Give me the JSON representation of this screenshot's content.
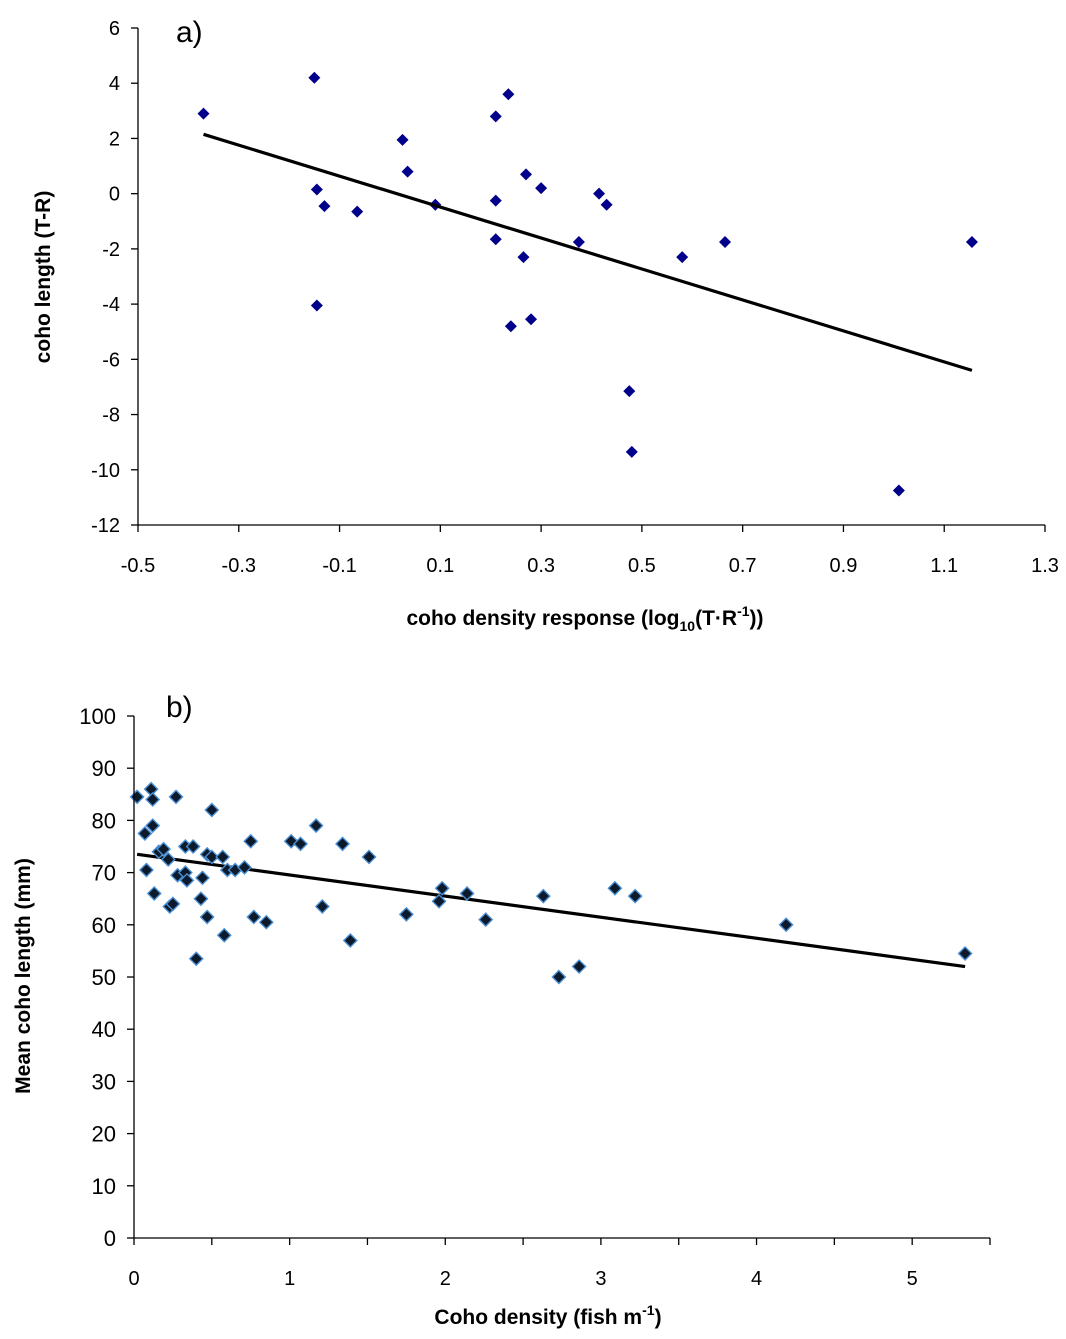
{
  "chart_data": [
    {
      "type": "scatter",
      "panel_label": "a)",
      "xlabel_main": "coho density response (log",
      "xlabel_sub": "10",
      "xlabel_mid": "(T·R",
      "xlabel_sup": "-1",
      "xlabel_end": "))",
      "ylabel": "coho length (T-R)",
      "xlim": [
        -0.5,
        1.3
      ],
      "ylim": [
        -12,
        6
      ],
      "xticks": [
        "-0.5",
        "-0.3",
        "-0.1",
        "0.1",
        "0.3",
        "0.5",
        "0.7",
        "0.9",
        "1.1",
        "1.3"
      ],
      "yticks": [
        "-12",
        "-10",
        "-8",
        "-6",
        "-4",
        "-2",
        "0",
        "2",
        "4",
        "6"
      ],
      "marker_color": "#00008B",
      "points": [
        {
          "x": -0.37,
          "y": 2.9
        },
        {
          "x": -0.15,
          "y": 4.2
        },
        {
          "x": -0.145,
          "y": 0.15
        },
        {
          "x": -0.145,
          "y": -4.05
        },
        {
          "x": -0.13,
          "y": -0.45
        },
        {
          "x": -0.065,
          "y": -0.65
        },
        {
          "x": 0.025,
          "y": 1.95
        },
        {
          "x": 0.035,
          "y": 0.8
        },
        {
          "x": 0.09,
          "y": -0.4
        },
        {
          "x": 0.21,
          "y": 2.8
        },
        {
          "x": 0.21,
          "y": -0.25
        },
        {
          "x": 0.21,
          "y": -1.65
        },
        {
          "x": 0.235,
          "y": 3.6
        },
        {
          "x": 0.24,
          "y": -4.8
        },
        {
          "x": 0.265,
          "y": -2.3
        },
        {
          "x": 0.27,
          "y": 0.7
        },
        {
          "x": 0.28,
          "y": -4.55
        },
        {
          "x": 0.3,
          "y": 0.2
        },
        {
          "x": 0.375,
          "y": -1.75
        },
        {
          "x": 0.415,
          "y": 0.0
        },
        {
          "x": 0.43,
          "y": -0.4
        },
        {
          "x": 0.475,
          "y": -7.15
        },
        {
          "x": 0.48,
          "y": -9.35
        },
        {
          "x": 0.58,
          "y": -2.3
        },
        {
          "x": 0.665,
          "y": -1.75
        },
        {
          "x": 1.01,
          "y": -10.75
        },
        {
          "x": 1.155,
          "y": -1.75
        }
      ],
      "trendline": {
        "x0": -0.37,
        "y0": 2.15,
        "x1": 1.155,
        "y1": -6.4
      }
    },
    {
      "type": "scatter",
      "panel_label": "b)",
      "xlabel_main": "Coho density (fish m",
      "xlabel_sup": "-1",
      "xlabel_end": ")",
      "ylabel": "Mean coho length (mm)",
      "xlim": [
        0,
        5.5
      ],
      "ylim": [
        0,
        100
      ],
      "xticks": [
        "0",
        "1",
        "2",
        "3",
        "4",
        "5"
      ],
      "xtick_values": [
        0,
        1,
        2,
        3,
        4,
        5
      ],
      "minor_xtick_values": [
        0.5,
        1.5,
        2.5,
        3.5,
        4.5,
        5.5
      ],
      "yticks": [
        "0",
        "10",
        "20",
        "30",
        "40",
        "50",
        "60",
        "70",
        "80",
        "90",
        "100"
      ],
      "marker_color": "#0d1a2b",
      "marker_edge": "#4a8fd4",
      "points": [
        {
          "x": 0.02,
          "y": 84.5
        },
        {
          "x": 0.07,
          "y": 77.5
        },
        {
          "x": 0.08,
          "y": 70.5
        },
        {
          "x": 0.11,
          "y": 86.0
        },
        {
          "x": 0.12,
          "y": 84.0
        },
        {
          "x": 0.12,
          "y": 79.0
        },
        {
          "x": 0.13,
          "y": 66.0
        },
        {
          "x": 0.16,
          "y": 74.0
        },
        {
          "x": 0.19,
          "y": 74.5
        },
        {
          "x": 0.22,
          "y": 72.5
        },
        {
          "x": 0.23,
          "y": 63.5
        },
        {
          "x": 0.25,
          "y": 64.0
        },
        {
          "x": 0.27,
          "y": 84.5
        },
        {
          "x": 0.28,
          "y": 69.5
        },
        {
          "x": 0.33,
          "y": 75.0
        },
        {
          "x": 0.33,
          "y": 70.0
        },
        {
          "x": 0.34,
          "y": 68.5
        },
        {
          "x": 0.38,
          "y": 75.0
        },
        {
          "x": 0.4,
          "y": 53.5
        },
        {
          "x": 0.43,
          "y": 65.0
        },
        {
          "x": 0.44,
          "y": 69.0
        },
        {
          "x": 0.47,
          "y": 73.5
        },
        {
          "x": 0.47,
          "y": 61.5
        },
        {
          "x": 0.5,
          "y": 82.0
        },
        {
          "x": 0.5,
          "y": 73.0
        },
        {
          "x": 0.57,
          "y": 73.0
        },
        {
          "x": 0.58,
          "y": 58.0
        },
        {
          "x": 0.6,
          "y": 70.5
        },
        {
          "x": 0.65,
          "y": 70.5
        },
        {
          "x": 0.71,
          "y": 71.0
        },
        {
          "x": 0.75,
          "y": 76.0
        },
        {
          "x": 0.77,
          "y": 61.5
        },
        {
          "x": 0.85,
          "y": 60.5
        },
        {
          "x": 1.01,
          "y": 76.0
        },
        {
          "x": 1.07,
          "y": 75.5
        },
        {
          "x": 1.17,
          "y": 79.0
        },
        {
          "x": 1.21,
          "y": 63.5
        },
        {
          "x": 1.34,
          "y": 75.5
        },
        {
          "x": 1.39,
          "y": 57.0
        },
        {
          "x": 1.51,
          "y": 73.0
        },
        {
          "x": 1.75,
          "y": 62.0
        },
        {
          "x": 1.96,
          "y": 64.5
        },
        {
          "x": 1.98,
          "y": 67.0
        },
        {
          "x": 2.14,
          "y": 66.0
        },
        {
          "x": 2.26,
          "y": 61.0
        },
        {
          "x": 2.63,
          "y": 65.5
        },
        {
          "x": 2.73,
          "y": 50.0
        },
        {
          "x": 2.86,
          "y": 52.0
        },
        {
          "x": 3.09,
          "y": 67.0
        },
        {
          "x": 3.22,
          "y": 65.5
        },
        {
          "x": 4.19,
          "y": 60.0
        },
        {
          "x": 5.34,
          "y": 54.5
        }
      ],
      "trendline": {
        "x0": 0.02,
        "y0": 73.5,
        "x1": 5.34,
        "y1": 52.0
      }
    }
  ]
}
